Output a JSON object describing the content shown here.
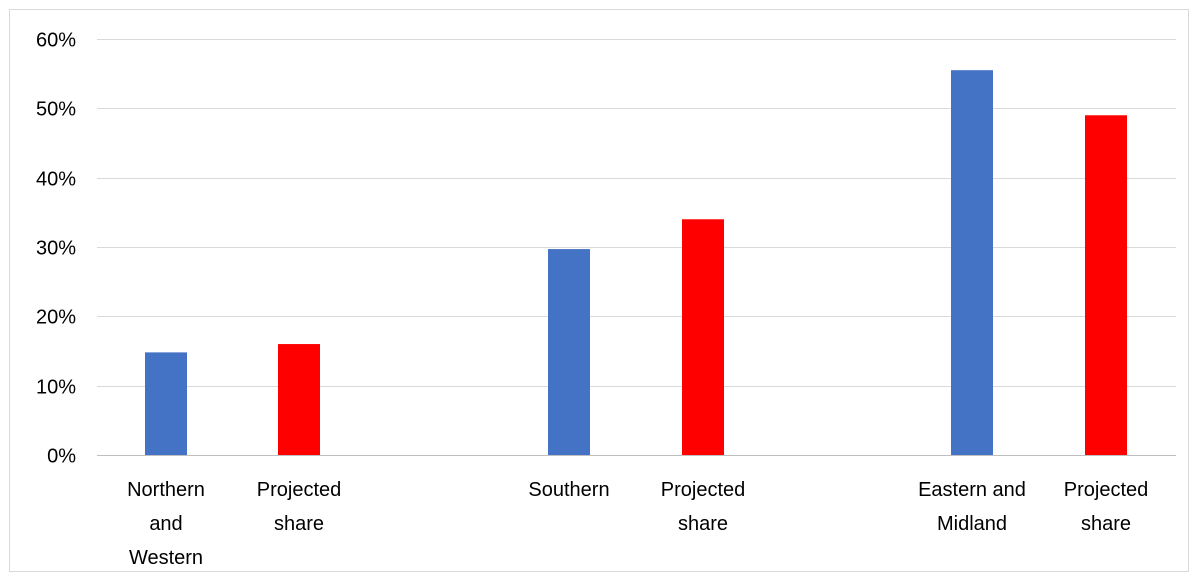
{
  "chart_data": {
    "type": "bar",
    "categories": [
      "Northern and Western",
      "Projected share",
      "Southern",
      "Projected share",
      "Eastern and Midland",
      "Projected share"
    ],
    "category_label_lines": [
      [
        "Northern",
        "and",
        "Western"
      ],
      [
        "Projected",
        "share"
      ],
      [
        "Southern"
      ],
      [
        "Projected",
        "share"
      ],
      [
        "Eastern and",
        "Midland"
      ],
      [
        "Projected",
        "share"
      ]
    ],
    "values": [
      0.148,
      0.16,
      0.297,
      0.34,
      0.555,
      0.49
    ],
    "bar_colors": [
      "#4472C4",
      "#FF0000",
      "#4472C4",
      "#FF0000",
      "#4472C4",
      "#FF0000"
    ],
    "groups": [
      [
        0,
        1
      ],
      [
        2,
        3
      ],
      [
        4,
        5
      ]
    ],
    "ylim": [
      0,
      0.6
    ],
    "yticks": [
      0,
      0.1,
      0.2,
      0.3,
      0.4,
      0.5,
      0.6
    ],
    "ytick_labels": [
      "0%",
      "10%",
      "20%",
      "30%",
      "40%",
      "50%",
      "60%"
    ],
    "grid": true,
    "legend": "none",
    "title": "",
    "xlabel": "",
    "ylabel": ""
  },
  "colors": {
    "gridline": "#d9d9d9",
    "axis": "#bfbfbf"
  }
}
